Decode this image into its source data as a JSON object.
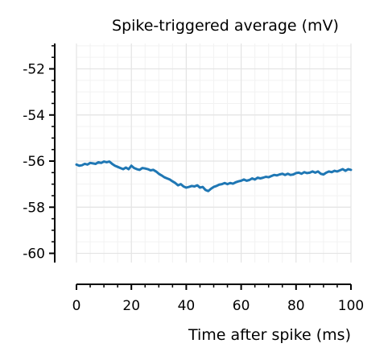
{
  "chart_data": {
    "type": "line",
    "title": "Spike-triggered average (mV)",
    "xlabel": "Time after spike (ms)",
    "ylabel": "",
    "xlim": [
      0,
      100
    ],
    "ylim": [
      -60.4,
      -50.9
    ],
    "grid": true,
    "minor_grid": true,
    "legend": "none",
    "x_ticks": [
      0,
      20,
      40,
      60,
      80,
      100
    ],
    "x_tick_labels": [
      "0",
      "20",
      "40",
      "60",
      "80",
      "100"
    ],
    "y_ticks": [
      -60,
      -58,
      -56,
      -54,
      -52
    ],
    "y_tick_labels": [
      "-60",
      "-58",
      "-56",
      "-54",
      "-52"
    ],
    "series": [
      {
        "color": "#1f77b4",
        "x": [
          0,
          1,
          2,
          3,
          4,
          5,
          6,
          7,
          8,
          9,
          10,
          11,
          12,
          13,
          14,
          15,
          16,
          17,
          18,
          19,
          20,
          21,
          22,
          23,
          24,
          25,
          26,
          27,
          28,
          29,
          30,
          31,
          32,
          33,
          34,
          35,
          36,
          37,
          38,
          39,
          40,
          41,
          42,
          43,
          44,
          45,
          46,
          47,
          48,
          49,
          50,
          51,
          52,
          53,
          54,
          55,
          56,
          57,
          58,
          59,
          60,
          61,
          62,
          63,
          64,
          65,
          66,
          67,
          68,
          69,
          70,
          71,
          72,
          73,
          74,
          75,
          76,
          77,
          78,
          79,
          80,
          81,
          82,
          83,
          84,
          85,
          86,
          87,
          88,
          89,
          90,
          91,
          92,
          93,
          94,
          95,
          96,
          97,
          98,
          99,
          100
        ],
        "y": [
          -56.15,
          -56.2,
          -56.18,
          -56.12,
          -56.15,
          -56.08,
          -56.1,
          -56.12,
          -56.05,
          -56.08,
          -56.02,
          -56.05,
          -56.02,
          -56.12,
          -56.2,
          -56.25,
          -56.3,
          -56.35,
          -56.28,
          -56.35,
          -56.2,
          -56.3,
          -56.35,
          -56.38,
          -56.3,
          -56.32,
          -56.35,
          -56.4,
          -56.38,
          -56.45,
          -56.55,
          -56.62,
          -56.7,
          -56.75,
          -56.8,
          -56.88,
          -56.95,
          -57.05,
          -57.0,
          -57.1,
          -57.15,
          -57.12,
          -57.08,
          -57.1,
          -57.05,
          -57.15,
          -57.12,
          -57.25,
          -57.3,
          -57.2,
          -57.12,
          -57.08,
          -57.02,
          -57.0,
          -56.95,
          -57.0,
          -56.95,
          -56.98,
          -56.92,
          -56.88,
          -56.85,
          -56.8,
          -56.85,
          -56.82,
          -56.75,
          -56.8,
          -56.72,
          -56.75,
          -56.72,
          -56.68,
          -56.7,
          -56.65,
          -56.6,
          -56.62,
          -56.58,
          -56.55,
          -56.6,
          -56.55,
          -56.6,
          -56.58,
          -56.52,
          -56.5,
          -56.55,
          -56.48,
          -56.52,
          -56.5,
          -56.45,
          -56.5,
          -56.45,
          -56.55,
          -56.58,
          -56.5,
          -56.45,
          -56.48,
          -56.42,
          -56.45,
          -56.4,
          -56.35,
          -56.42,
          -56.35,
          -56.38
        ]
      }
    ]
  }
}
